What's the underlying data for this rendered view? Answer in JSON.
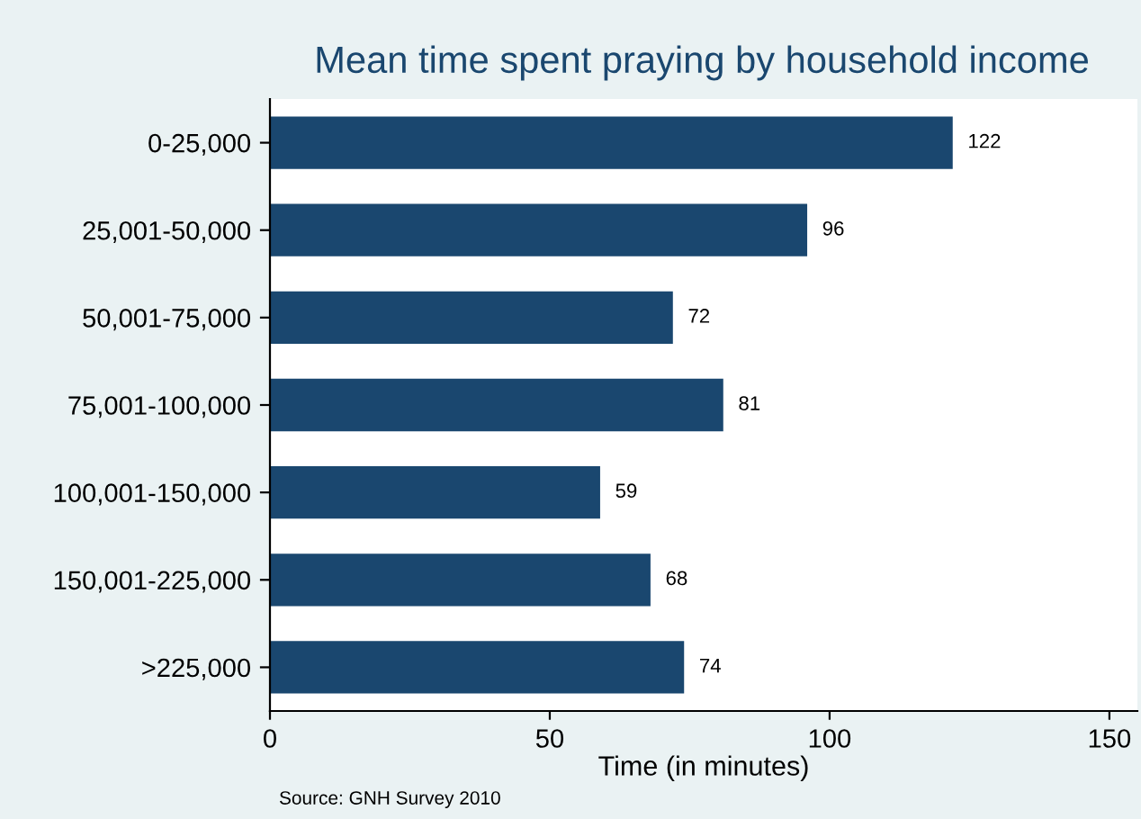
{
  "chart_data": {
    "type": "bar",
    "orientation": "horizontal",
    "title": "Mean time spent praying by household income",
    "xlabel": "Time (in minutes)",
    "categories": [
      "0-25,000",
      "25,001-50,000",
      "50,001-75,000",
      "75,001-100,000",
      "100,001-150,000",
      "150,001-225,000",
      ">225,000"
    ],
    "values": [
      122,
      96,
      72,
      81,
      59,
      68,
      74
    ],
    "color": "#1a476f",
    "data_labels": true,
    "xlim": [
      0,
      155
    ],
    "xticks": [
      0,
      50,
      100,
      150
    ],
    "grid": false,
    "annotations": [
      "Source: GNH Survey 2010"
    ]
  }
}
